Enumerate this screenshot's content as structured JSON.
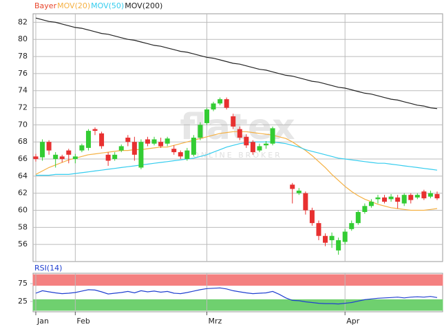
{
  "chart_data": [
    {
      "type": "candlestick",
      "name": "Bayer",
      "color": "#e8452c",
      "up_color": "#33cc33",
      "down_color": "#e83030",
      "watermark": {
        "logo": "flatex",
        "tagline": "ONLINE BROKER"
      },
      "open": [
        66.3,
        66.2,
        68.0,
        66.0,
        66.3,
        67.0,
        66.0,
        67.0,
        67.3,
        69.5,
        69.0,
        66.5,
        66.0,
        67.0,
        68.5,
        68.0,
        65.0,
        68.3,
        67.8,
        68.0,
        67.8,
        67.2,
        66.8,
        66.0,
        66.5,
        68.5,
        70.2,
        71.8,
        72.5,
        73.0,
        71.0,
        69.5,
        68.6,
        68.0,
        67.0,
        67.6,
        67.8,
        null,
        null,
        63.0,
        62.0,
        62.0,
        60.0,
        58.5,
        57.0,
        56.5,
        55.3,
        56.3,
        57.8,
        58.5,
        59.8,
        60.5,
        61.3,
        61.5,
        61.3,
        61.5,
        60.8,
        61.8,
        61.5,
        62.2,
        61.6,
        61.9
      ],
      "high": [
        66.6,
        68.3,
        68.2,
        66.8,
        66.5,
        67.2,
        66.6,
        67.8,
        69.5,
        69.7,
        69.2,
        66.8,
        66.8,
        67.7,
        68.8,
        68.6,
        68.3,
        68.6,
        68.6,
        68.5,
        68.6,
        67.6,
        67.0,
        67.3,
        68.8,
        70.3,
        72.0,
        72.7,
        73.2,
        73.2,
        71.3,
        69.8,
        68.9,
        68.2,
        67.8,
        68.1,
        69.8,
        null,
        null,
        63.2,
        62.6,
        62.2,
        60.3,
        58.8,
        57.3,
        57.4,
        56.8,
        57.8,
        58.8,
        60.0,
        60.8,
        61.3,
        61.8,
        61.8,
        61.9,
        61.8,
        62.0,
        62.0,
        62.0,
        62.4,
        62.3,
        62.2
      ],
      "low": [
        65.7,
        65.8,
        66.5,
        65.0,
        65.6,
        65.5,
        65.5,
        66.8,
        67.0,
        68.8,
        67.2,
        65.2,
        65.8,
        66.8,
        67.5,
        65.8,
        64.8,
        67.5,
        67.6,
        67.3,
        67.5,
        66.5,
        66.0,
        65.8,
        66.3,
        68.2,
        70.0,
        71.6,
        72.3,
        71.8,
        69.5,
        68.2,
        67.3,
        66.5,
        66.8,
        67.2,
        67.6,
        null,
        null,
        60.8,
        61.8,
        59.5,
        58.2,
        56.5,
        55.8,
        55.6,
        54.8,
        56.0,
        57.6,
        58.3,
        59.6,
        60.3,
        60.8,
        60.8,
        61.0,
        60.2,
        60.5,
        60.8,
        61.3,
        61.2,
        61.4,
        61.2
      ],
      "close": [
        66.0,
        68.0,
        67.0,
        66.5,
        66.0,
        66.5,
        66.3,
        67.6,
        69.3,
        69.3,
        67.5,
        65.8,
        66.5,
        67.5,
        68.0,
        66.5,
        68.0,
        67.8,
        68.3,
        67.5,
        68.4,
        66.8,
        66.3,
        67.0,
        68.5,
        70.0,
        71.8,
        72.5,
        73.0,
        72.0,
        69.8,
        68.5,
        67.6,
        66.8,
        67.5,
        67.8,
        69.6,
        null,
        null,
        62.5,
        62.3,
        60.0,
        58.5,
        57.0,
        56.2,
        57.0,
        56.5,
        57.5,
        58.5,
        59.8,
        60.5,
        61.0,
        61.5,
        61.0,
        61.6,
        61.0,
        61.8,
        61.2,
        61.8,
        61.4,
        62.0,
        61.4
      ],
      "series": [
        {
          "name": "MOV(20)",
          "color": "#f5b041",
          "values": [
            64.2,
            64.6,
            65.0,
            65.3,
            65.6,
            65.9,
            66.1,
            66.3,
            66.5,
            66.6,
            66.7,
            66.8,
            66.9,
            67.0,
            67.0,
            67.1,
            67.1,
            67.2,
            67.3,
            67.4,
            67.4,
            67.6,
            67.8,
            68.0,
            68.2,
            68.4,
            68.6,
            68.8,
            69.0,
            69.1,
            69.2,
            69.2,
            69.2,
            69.1,
            69.0,
            68.9,
            68.8,
            68.6,
            68.4,
            68.0,
            67.5,
            67.0,
            66.4,
            65.7,
            65.0,
            64.2,
            63.5,
            62.8,
            62.2,
            61.7,
            61.3,
            61.0,
            60.7,
            60.5,
            60.3,
            60.2,
            60.1,
            60.0,
            60.0,
            60.0,
            60.1,
            60.2
          ]
        },
        {
          "name": "MOV(50)",
          "color": "#33ccee",
          "values": [
            64.1,
            64.1,
            64.1,
            64.2,
            64.2,
            64.2,
            64.3,
            64.4,
            64.5,
            64.6,
            64.7,
            64.8,
            64.9,
            65.0,
            65.1,
            65.2,
            65.3,
            65.4,
            65.5,
            65.6,
            65.7,
            65.8,
            65.9,
            66.0,
            66.1,
            66.3,
            66.5,
            66.8,
            67.1,
            67.4,
            67.6,
            67.8,
            67.9,
            68.0,
            68.0,
            68.0,
            68.0,
            67.9,
            67.8,
            67.6,
            67.4,
            67.1,
            66.9,
            66.7,
            66.5,
            66.3,
            66.1,
            66.0,
            65.9,
            65.8,
            65.7,
            65.6,
            65.5,
            65.5,
            65.4,
            65.3,
            65.2,
            65.1,
            65.0,
            64.9,
            64.8,
            64.7
          ]
        },
        {
          "name": "MOV(200)",
          "color": "#222222",
          "values": [
            82.5,
            82.3,
            82.1,
            82.0,
            81.8,
            81.6,
            81.4,
            81.3,
            81.1,
            80.9,
            80.7,
            80.6,
            80.4,
            80.2,
            80.0,
            79.9,
            79.7,
            79.5,
            79.3,
            79.2,
            79.0,
            78.8,
            78.6,
            78.5,
            78.3,
            78.1,
            77.9,
            77.8,
            77.6,
            77.4,
            77.2,
            77.1,
            76.9,
            76.7,
            76.5,
            76.4,
            76.2,
            76.0,
            75.8,
            75.7,
            75.5,
            75.3,
            75.1,
            75.0,
            74.8,
            74.6,
            74.4,
            74.3,
            74.1,
            73.9,
            73.7,
            73.6,
            73.4,
            73.2,
            73.0,
            72.9,
            72.7,
            72.5,
            72.3,
            72.2,
            72.0,
            71.9
          ]
        }
      ],
      "ylim": [
        54,
        83
      ],
      "yticks": [
        56,
        58,
        60,
        62,
        64,
        66,
        68,
        70,
        72,
        74,
        76,
        78,
        80,
        82
      ],
      "grid": true
    },
    {
      "type": "line",
      "categories": [
        "Jan",
        null,
        null,
        null,
        null,
        null,
        "Feb",
        null,
        null,
        null,
        null,
        null,
        null,
        null,
        null,
        null,
        null,
        null,
        null,
        null,
        null,
        null,
        null,
        null,
        null,
        null,
        "Mrz",
        null,
        null,
        null,
        null,
        null,
        null,
        null,
        null,
        null,
        null,
        null,
        null,
        null,
        null,
        null,
        null,
        null,
        null,
        null,
        null,
        "Apr",
        null,
        null,
        null,
        null,
        null,
        null,
        null,
        null,
        null,
        null,
        null,
        null,
        null,
        null
      ],
      "series": [
        {
          "name": "RSI(14)",
          "color": "#1f3fd0",
          "values": [
            48,
            55,
            52,
            49,
            47,
            48,
            50,
            54,
            58,
            57,
            52,
            46,
            48,
            50,
            53,
            49,
            55,
            52,
            54,
            51,
            53,
            48,
            47,
            50,
            54,
            58,
            61,
            62,
            63,
            60,
            55,
            52,
            49,
            47,
            48,
            49,
            53,
            45,
            35,
            28,
            27,
            24,
            22,
            20,
            19,
            19,
            18,
            20,
            22,
            26,
            30,
            32,
            34,
            35,
            36,
            37,
            35,
            37,
            38,
            37,
            39,
            36
          ]
        }
      ],
      "zones": [
        {
          "from": 70,
          "to": 100,
          "color": "#f48080"
        },
        {
          "from": 0,
          "to": 30,
          "color": "#6fd06f"
        }
      ],
      "ylim": [
        -4,
        104
      ],
      "yticks": [
        25,
        75
      ]
    }
  ]
}
